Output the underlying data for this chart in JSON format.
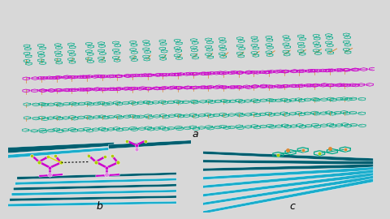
{
  "fig_width": 4.8,
  "fig_height": 2.7,
  "dpi": 100,
  "bg_color": "#d8d8d8",
  "colors": {
    "teal_dark": "#005f70",
    "teal_light": "#1aadcc",
    "teal_mid": "#0088aa",
    "purple": "#cc00cc",
    "green": "#00aa88",
    "orange": "#dd8833",
    "yellow_green": "#aacc00",
    "white": "#ffffff",
    "black": "#000000",
    "panel_bg": "#ffffff"
  },
  "label_a": "a",
  "label_b": "b",
  "label_c": "c"
}
